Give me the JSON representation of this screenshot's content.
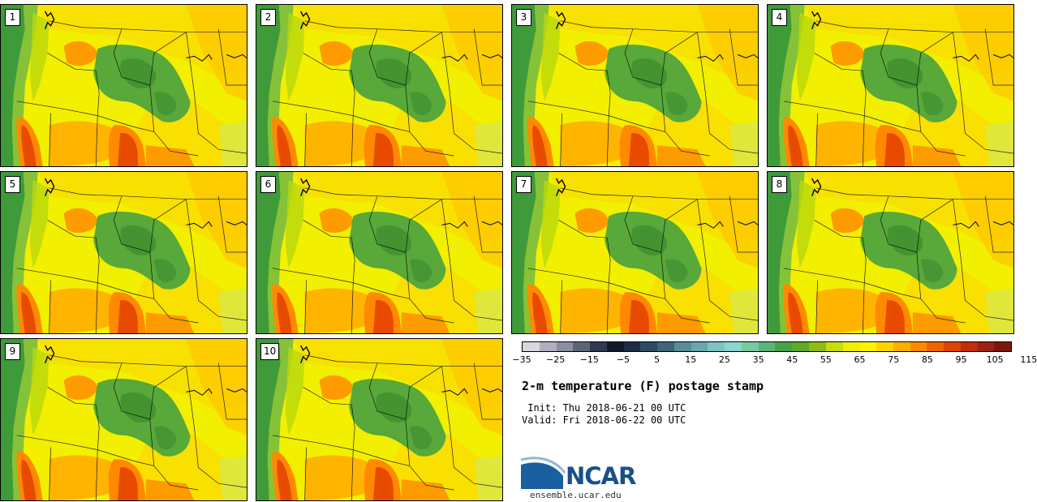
{
  "panels": [
    {
      "label": "1"
    },
    {
      "label": "2"
    },
    {
      "label": "3"
    },
    {
      "label": "4"
    },
    {
      "label": "5"
    },
    {
      "label": "6"
    },
    {
      "label": "7"
    },
    {
      "label": "8"
    },
    {
      "label": "9"
    },
    {
      "label": "10"
    }
  ],
  "colorbar": {
    "colors": [
      "#d8d8e0",
      "#b0b0c0",
      "#8a8ea2",
      "#5e6478",
      "#303a50",
      "#111a2c",
      "#1e2e44",
      "#2e4a60",
      "#3e6678",
      "#5a8c98",
      "#6aa6ae",
      "#80c2c2",
      "#8cd6cc",
      "#7cc8a0",
      "#5cb478",
      "#48a048",
      "#5ea82a",
      "#8cbc18",
      "#c8dc10",
      "#eeee08",
      "#fff200",
      "#ffd400",
      "#ffb000",
      "#ff8a00",
      "#f06400",
      "#dd4400",
      "#c02e0a",
      "#9e2210",
      "#7a1810"
    ],
    "ticks": [
      "−35",
      "−25",
      "−15",
      "−5",
      "5",
      "15",
      "25",
      "35",
      "45",
      "55",
      "65",
      "75",
      "85",
      "95",
      "105",
      "115"
    ]
  },
  "title": "2-m temperature (F) postage stamp",
  "init": " Init: Thu 2018-06-21 00 UTC",
  "valid": "Valid: Fri 2018-06-22 00 UTC",
  "logo": {
    "text": "NCAR",
    "site": "ensemble.ucar.edu",
    "brand_color": "#1a4f8b",
    "accent_color": "#3a8fd0"
  },
  "map_colors": {
    "ocean": "#3f9a3a",
    "coast": "#7fbf3a",
    "land": "#f4f400",
    "warm": "#ffc800",
    "hot": "#ff8c00",
    "hottest": "#e84a00",
    "cool": "#58a83a"
  }
}
